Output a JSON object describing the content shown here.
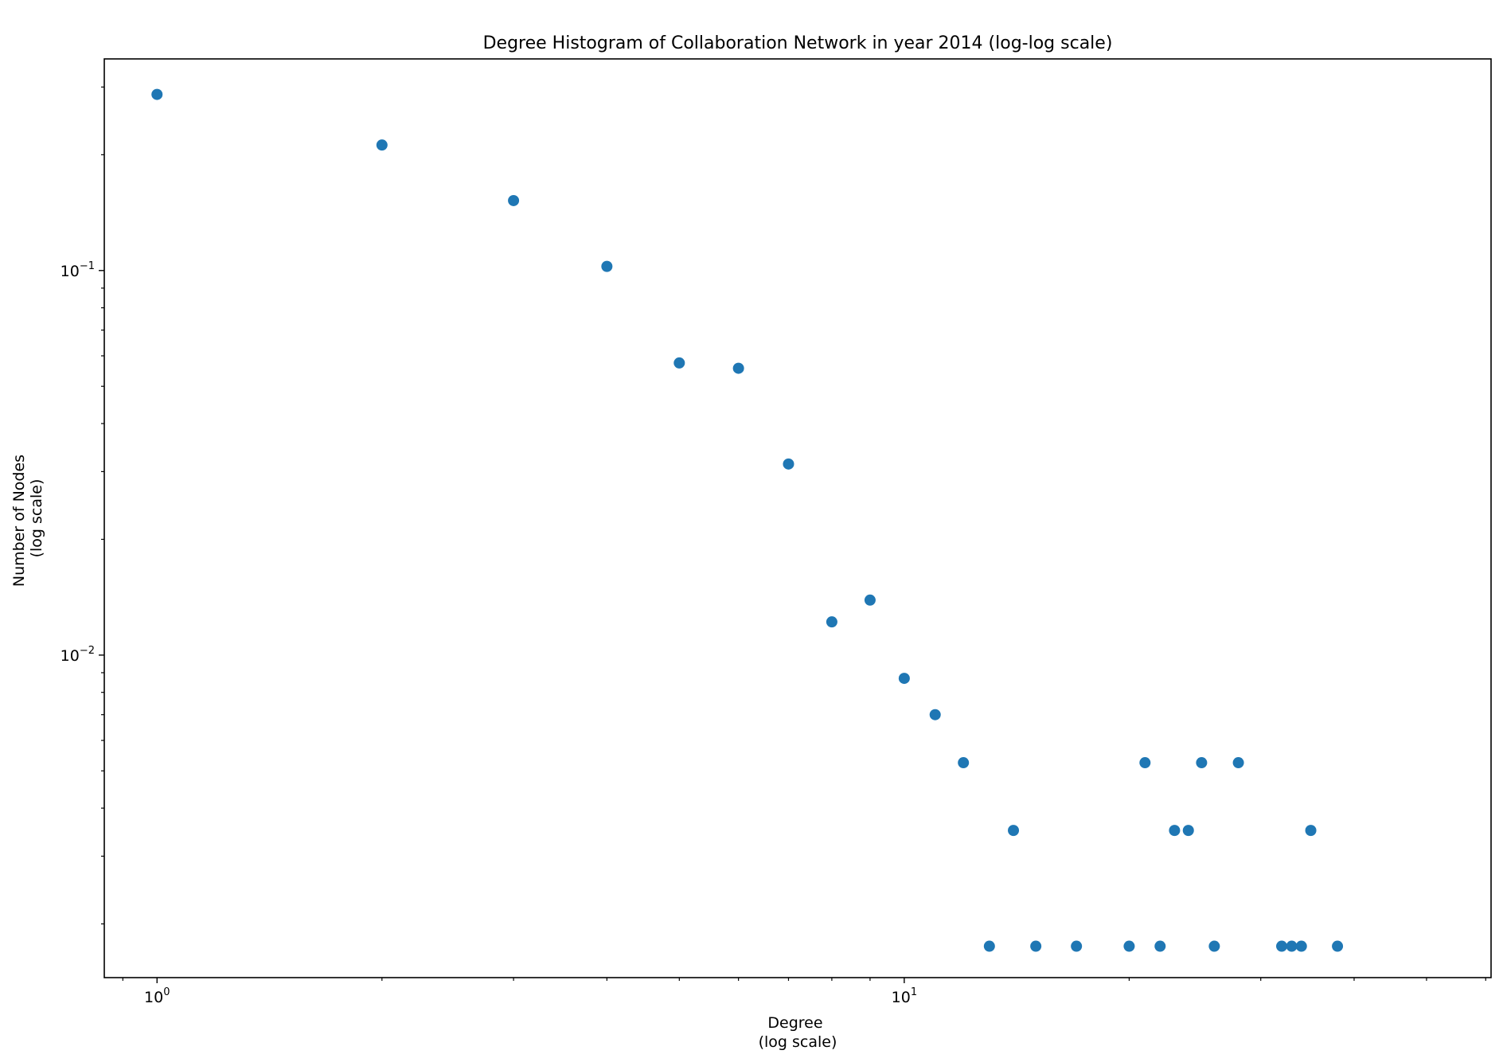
{
  "chart_data": {
    "type": "scatter",
    "title": "Degree Histogram of Collaboration Network in year 2014 (log-log scale)",
    "xlabel": [
      "Degree",
      "(log scale)"
    ],
    "ylabel": [
      "Number of Nodes",
      "(log scale)"
    ],
    "xscale": "log",
    "yscale": "log",
    "xlim": [
      0.85,
      61
    ],
    "ylim": [
      0.00145,
      0.355
    ],
    "grid": false,
    "x_major_ticks": [
      {
        "value": 1,
        "base": "10",
        "exp": "0"
      },
      {
        "value": 10,
        "base": "10",
        "exp": "1"
      }
    ],
    "y_major_ticks": [
      {
        "value": 0.01,
        "base": "10",
        "exp": "−2"
      },
      {
        "value": 0.1,
        "base": "10",
        "exp": "−1"
      }
    ],
    "x_minor_ticks": [
      0.9,
      2,
      3,
      4,
      5,
      6,
      7,
      8,
      9,
      20,
      30,
      40,
      50,
      60
    ],
    "y_minor_ticks": [
      0.002,
      0.003,
      0.004,
      0.005,
      0.006,
      0.007,
      0.008,
      0.009,
      0.02,
      0.03,
      0.04,
      0.05,
      0.06,
      0.07,
      0.08,
      0.09,
      0.2,
      0.3
    ],
    "color": "#1f77b4",
    "points": [
      {
        "x": 1,
        "y": 0.287
      },
      {
        "x": 2,
        "y": 0.212
      },
      {
        "x": 3,
        "y": 0.152
      },
      {
        "x": 4,
        "y": 0.1025
      },
      {
        "x": 5,
        "y": 0.0575
      },
      {
        "x": 6,
        "y": 0.0557
      },
      {
        "x": 7,
        "y": 0.0314
      },
      {
        "x": 8,
        "y": 0.0122
      },
      {
        "x": 9,
        "y": 0.0139
      },
      {
        "x": 10,
        "y": 0.0087
      },
      {
        "x": 11,
        "y": 0.007
      },
      {
        "x": 12,
        "y": 0.00525
      },
      {
        "x": 13,
        "y": 0.00175
      },
      {
        "x": 14,
        "y": 0.0035
      },
      {
        "x": 15,
        "y": 0.00175
      },
      {
        "x": 17,
        "y": 0.00175
      },
      {
        "x": 20,
        "y": 0.00175
      },
      {
        "x": 21,
        "y": 0.00525
      },
      {
        "x": 22,
        "y": 0.00175
      },
      {
        "x": 23,
        "y": 0.0035
      },
      {
        "x": 24,
        "y": 0.0035
      },
      {
        "x": 25,
        "y": 0.00525
      },
      {
        "x": 26,
        "y": 0.00175
      },
      {
        "x": 28,
        "y": 0.00525
      },
      {
        "x": 32,
        "y": 0.00175
      },
      {
        "x": 33,
        "y": 0.00175
      },
      {
        "x": 34,
        "y": 0.00175
      },
      {
        "x": 35,
        "y": 0.0035
      },
      {
        "x": 38,
        "y": 0.00175
      }
    ]
  }
}
